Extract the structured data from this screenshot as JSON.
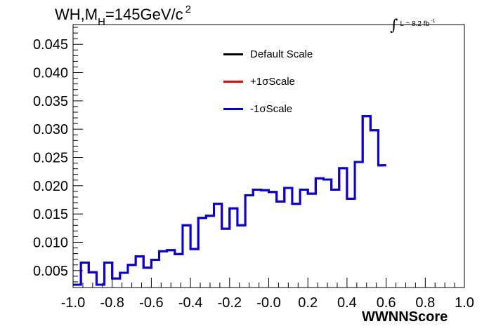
{
  "chart_data": {
    "type": "line",
    "title_prefix": "WH,M",
    "title_subscript": "H",
    "title_rest": "=145GeV/c",
    "title_superscript": "2",
    "lumi_label": "L = 8.2 fb",
    "lumi_superscript": "-1",
    "xlabel": "WWNNScore",
    "ylabel": "",
    "xlim": [
      -1.0,
      1.0
    ],
    "ylim": [
      0.002,
      0.0485
    ],
    "x_ticks": [
      "-1.0",
      "-0.8",
      "-0.6",
      "-0.4",
      "-0.2",
      "-0.0",
      "0.2",
      "0.4",
      "0.6",
      "0.8",
      "1.0"
    ],
    "y_ticks": [
      "0.005",
      "0.010",
      "0.015",
      "0.020",
      "0.025",
      "0.030",
      "0.035",
      "0.040",
      "0.045"
    ],
    "bin_edges_start": -1.0,
    "bin_width": 0.04,
    "series": [
      {
        "name": "Default Scale",
        "color": "#000000",
        "values": [
          0.0025,
          0.0064,
          0.0047,
          0.0025,
          0.0064,
          0.0036,
          0.0046,
          0.006,
          0.0075,
          0.0055,
          0.0069,
          0.0084,
          0.0086,
          0.0079,
          0.013,
          0.0088,
          0.0143,
          0.0147,
          0.0168,
          0.0124,
          0.016,
          0.013,
          0.0183,
          0.0193,
          0.0192,
          0.0189,
          0.0172,
          0.0196,
          0.0168,
          0.0193,
          0.0186,
          0.0213,
          0.0211,
          0.0193,
          0.0231,
          0.0177,
          0.0242,
          0.0323,
          0.0298,
          0.0236
        ]
      },
      {
        "name": "+1σScale",
        "color": "#ff0000",
        "values": [
          0.0025,
          0.0064,
          0.0047,
          0.0025,
          0.0064,
          0.0036,
          0.0046,
          0.006,
          0.0075,
          0.0055,
          0.0069,
          0.0084,
          0.0086,
          0.0079,
          0.013,
          0.0088,
          0.0143,
          0.0147,
          0.0168,
          0.0124,
          0.016,
          0.013,
          0.0183,
          0.0193,
          0.0192,
          0.0189,
          0.0172,
          0.0196,
          0.0168,
          0.0193,
          0.0186,
          0.0213,
          0.0211,
          0.0193,
          0.0231,
          0.0177,
          0.0242,
          0.0323,
          0.0298,
          0.0236
        ]
      },
      {
        "name": "-1σScale",
        "color": "#0000ee",
        "values": [
          0.0025,
          0.0064,
          0.0047,
          0.0025,
          0.0064,
          0.0036,
          0.0046,
          0.006,
          0.0075,
          0.0055,
          0.0069,
          0.0084,
          0.0086,
          0.0079,
          0.013,
          0.0088,
          0.0143,
          0.0147,
          0.0168,
          0.0124,
          0.016,
          0.013,
          0.0183,
          0.0193,
          0.0192,
          0.0189,
          0.0172,
          0.0196,
          0.0168,
          0.0193,
          0.0186,
          0.0213,
          0.0211,
          0.0193,
          0.0231,
          0.0177,
          0.0242,
          0.0323,
          0.0298,
          0.0236
        ]
      }
    ],
    "legend_placement": "top-center",
    "grid": false
  }
}
